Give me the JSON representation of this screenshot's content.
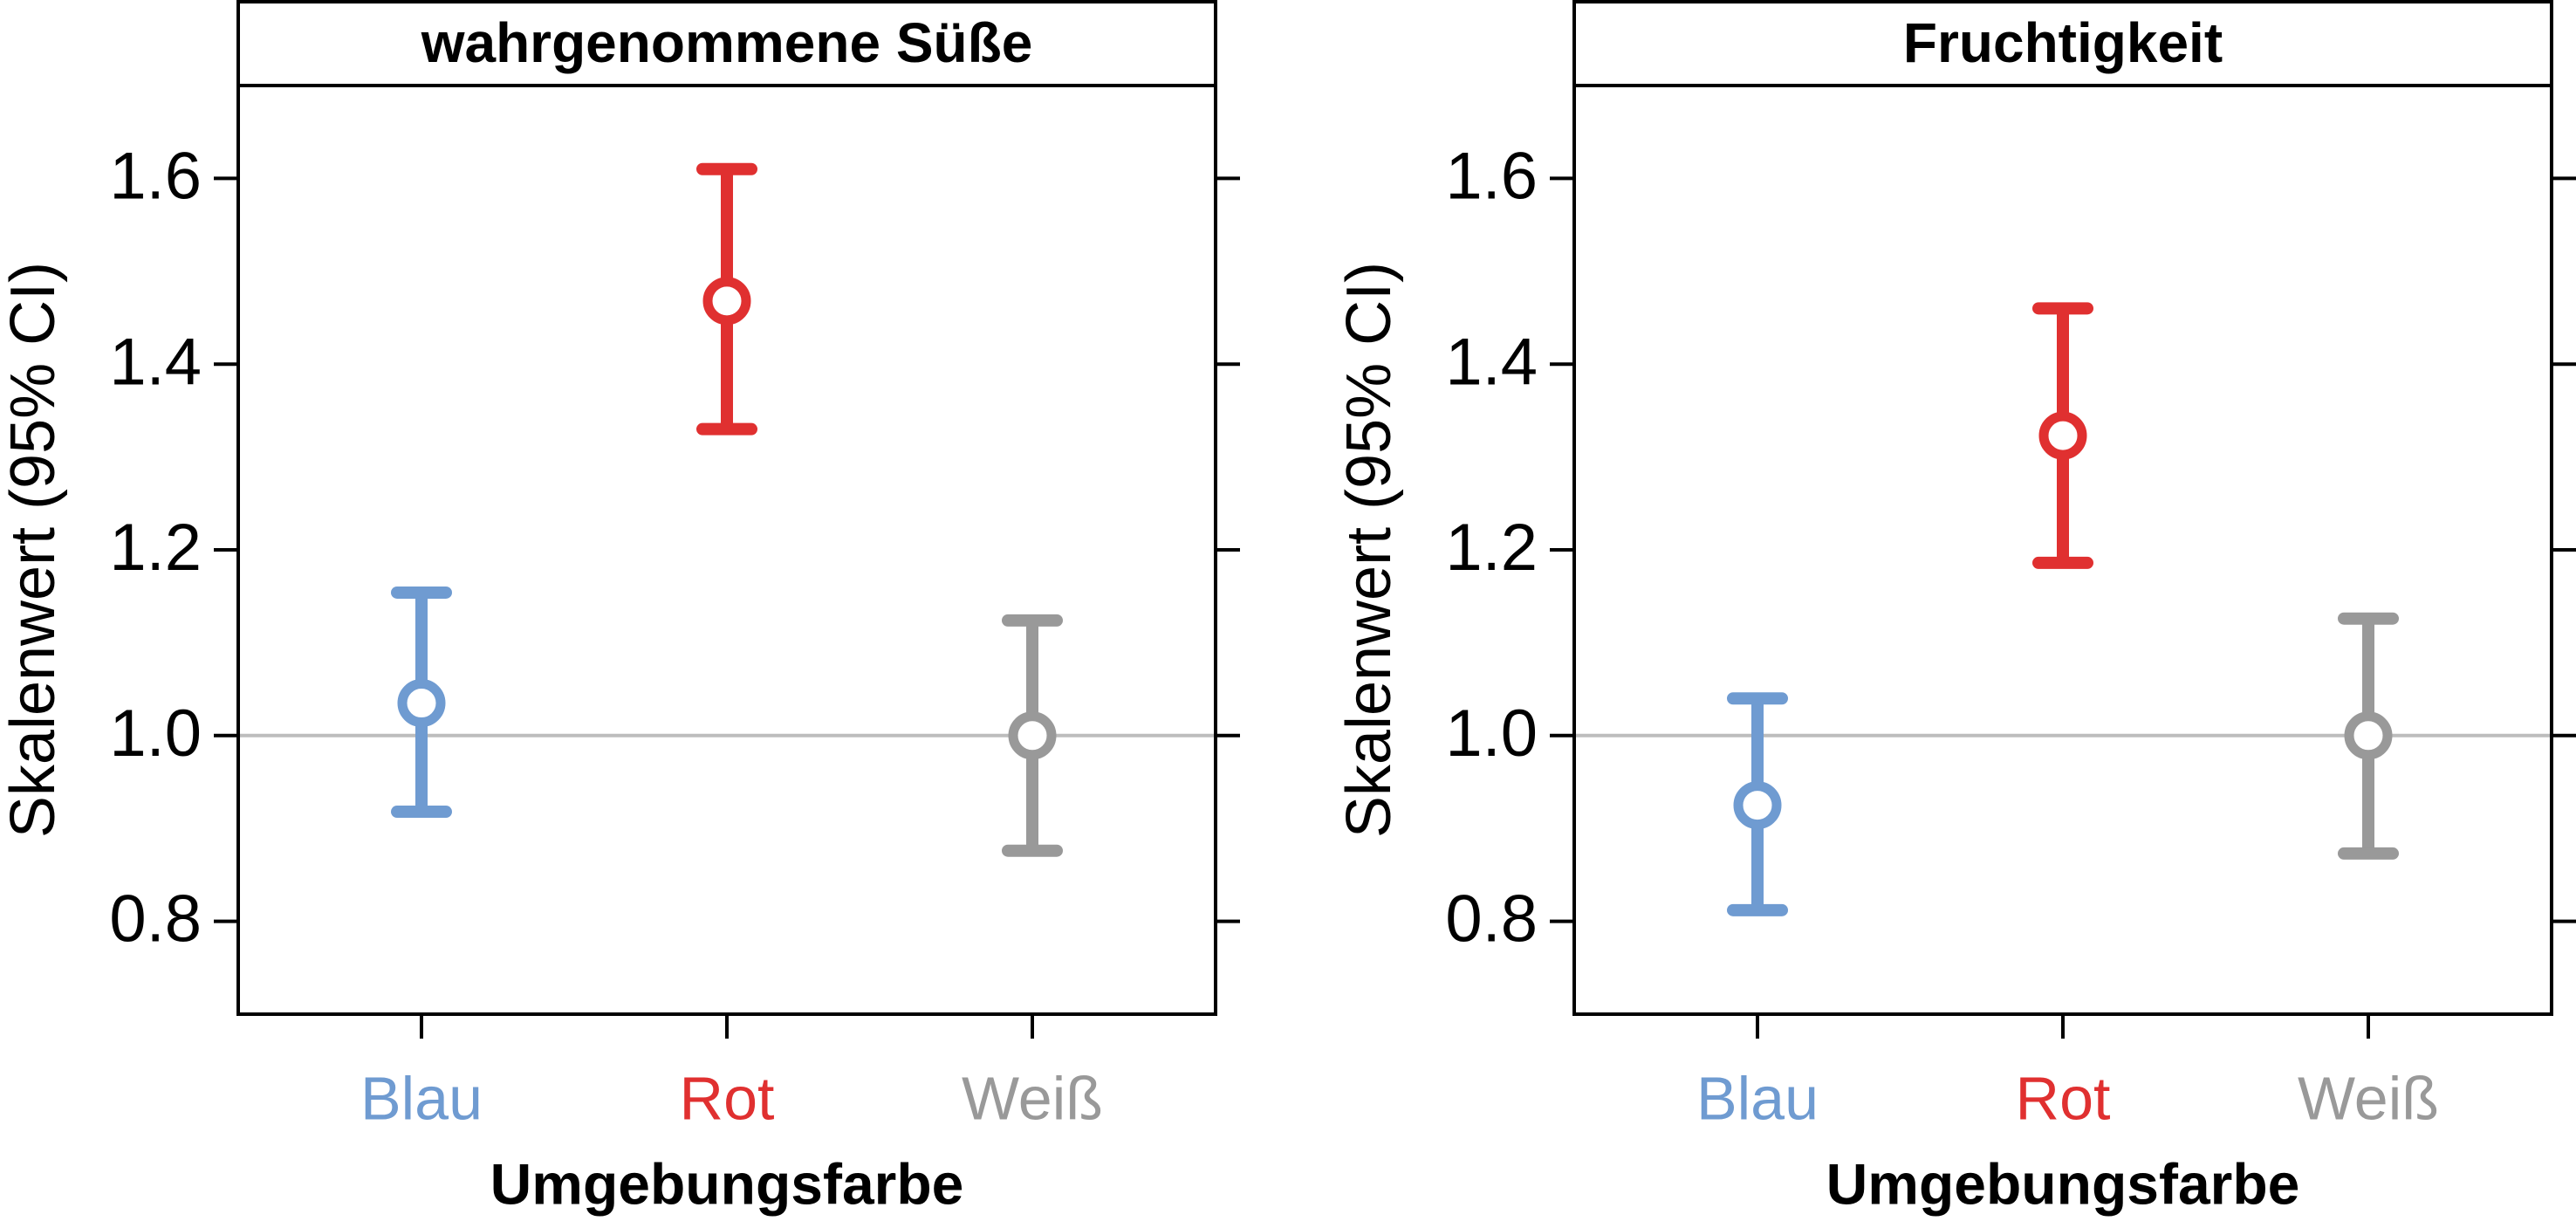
{
  "chart_data": [
    {
      "type": "errorbar",
      "title": "wahrgenommene Süße",
      "x_label": "Umgebungsfarbe",
      "y_label": "Skalenwert (95% CI)",
      "categories": [
        "Blau",
        "Rot",
        "Weiß"
      ],
      "colors": [
        "#6f9bd1",
        "#e03030",
        "#999999"
      ],
      "values": [
        1.035,
        1.468,
        1.0
      ],
      "lower": [
        0.918,
        1.33,
        0.876
      ],
      "upper": [
        1.154,
        1.61,
        1.124
      ],
      "ylim": [
        0.7,
        1.7
      ],
      "yticks": [
        0.8,
        {
          "value": 1,
          "label": "1.0"
        },
        1.2,
        1.4,
        1.6
      ],
      "reference_line": 1
    },
    {
      "type": "errorbar",
      "title": "Fruchtigkeit",
      "x_label": "Umgebungsfarbe",
      "y_label": "Skalenwert (95% CI)",
      "categories": [
        "Blau",
        "Rot",
        "Weiß"
      ],
      "colors": [
        "#6f9bd1",
        "#e03030",
        "#999999"
      ],
      "values": [
        0.925,
        1.323,
        1.0
      ],
      "lower": [
        0.812,
        1.186,
        0.873
      ],
      "upper": [
        1.04,
        1.46,
        1.126
      ],
      "ylim": [
        0.7,
        1.7
      ],
      "yticks": [
        0.8,
        {
          "value": 1,
          "label": "1.0"
        },
        1.2,
        1.4,
        1.6
      ],
      "reference_line": 1
    }
  ]
}
